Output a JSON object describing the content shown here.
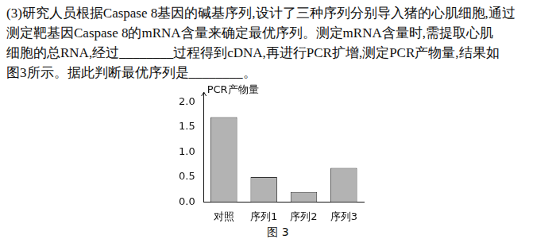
{
  "document": {
    "lines": [
      "(3)研究人员根据Caspase 8基因的碱基序列,设计了三种序列分别导入猪的心肌细胞,通过",
      "测定靶基因Caspase 8的mRNA含量来确定最优序列。测定mRNA含量时,需提取心肌",
      "细胞的总RNA,经过________过程得到cDNA,再进行PCR扩增,测定PCR产物量,结果如",
      "图3所示。据此判断最优序列是________。"
    ],
    "figure_caption": "图 3"
  },
  "chart_data": {
    "type": "bar",
    "y_label": "PCR产物量",
    "categories": [
      "对照",
      "序列1",
      "序列2",
      "序列3"
    ],
    "values": [
      1.7,
      0.5,
      0.2,
      0.68
    ],
    "color": "#b3b3b3",
    "ylim": [
      0,
      2.2
    ],
    "yticks": [
      {
        "value": 0,
        "label": "0.0"
      },
      {
        "value": 0.5,
        "label": "0.5"
      },
      {
        "value": 1,
        "label": "1.0"
      },
      {
        "value": 1.5,
        "label": "1.5"
      },
      {
        "value": 2,
        "label": "2.0"
      }
    ],
    "grid": false
  }
}
